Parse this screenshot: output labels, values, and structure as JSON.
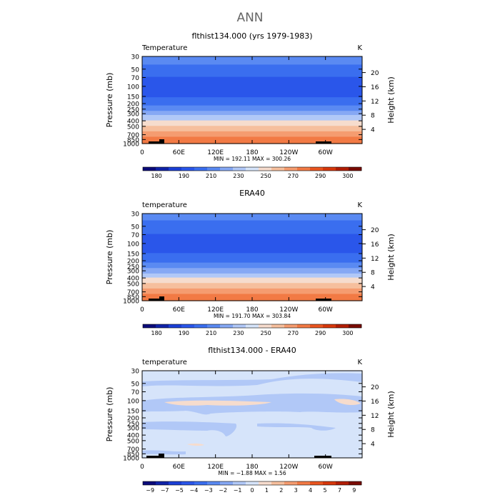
{
  "figure": {
    "title": "ANN"
  },
  "chart_data": [
    {
      "type": "heatmap",
      "title": "flthist134.000 (yrs 1979-1983)",
      "variable_label": "Temperature",
      "units": "K",
      "ylabel": "Pressure (mb)",
      "ylabel_right": "Height (km)",
      "x_ticks": [
        "0",
        "60E",
        "120E",
        "180",
        "120W",
        "60W"
      ],
      "y_ticks": [
        "30",
        "50",
        "70",
        "100",
        "150",
        "200",
        "250",
        "300",
        "400",
        "500",
        "700",
        "850",
        "1000"
      ],
      "y_right_ticks": [
        "20",
        "16",
        "12",
        "8",
        "4"
      ],
      "min_max": "MIN = 192.11   MAX = 300.26",
      "levels": [
        "180",
        "190",
        "210",
        "230",
        "250",
        "270",
        "290",
        "300"
      ],
      "colors": [
        "#0b0b7a",
        "#1023a8",
        "#1b3fd6",
        "#2a56ea",
        "#3a6eef",
        "#5a8af2",
        "#86a8f4",
        "#b1c8f7",
        "#d6e4fa",
        "#f6dccd",
        "#f6bf9d",
        "#f59c70",
        "#f27a45",
        "#ea5520",
        "#d7380c",
        "#b21e06",
        "#7a0c04"
      ],
      "profile": [
        {
          "p": 30,
          "t": 225
        },
        {
          "p": 50,
          "t": 217
        },
        {
          "p": 70,
          "t": 210
        },
        {
          "p": 100,
          "t": 205
        },
        {
          "p": 150,
          "t": 209
        },
        {
          "p": 200,
          "t": 218
        },
        {
          "p": 250,
          "t": 227
        },
        {
          "p": 300,
          "t": 236
        },
        {
          "p": 400,
          "t": 251
        },
        {
          "p": 500,
          "t": 262
        },
        {
          "p": 700,
          "t": 277
        },
        {
          "p": 850,
          "t": 285
        },
        {
          "p": 1000,
          "t": 290
        }
      ]
    },
    {
      "type": "heatmap",
      "title": "ERA40",
      "variable_label": "temperature",
      "units": "K",
      "ylabel": "Pressure (mb)",
      "ylabel_right": "Height (km)",
      "x_ticks": [
        "0",
        "60E",
        "120E",
        "180",
        "120W",
        "60W"
      ],
      "y_ticks": [
        "30",
        "50",
        "70",
        "100",
        "150",
        "200",
        "250",
        "300",
        "400",
        "500",
        "700",
        "850",
        "1000"
      ],
      "y_right_ticks": [
        "20",
        "16",
        "12",
        "8",
        "4"
      ],
      "min_max": "MIN = 191.70   MAX = 303.84",
      "levels": [
        "180",
        "190",
        "210",
        "230",
        "250",
        "270",
        "290",
        "300"
      ],
      "colors": [
        "#0b0b7a",
        "#1023a8",
        "#1b3fd6",
        "#2a56ea",
        "#3a6eef",
        "#5a8af2",
        "#86a8f4",
        "#b1c8f7",
        "#d6e4fa",
        "#f6dccd",
        "#f6bf9d",
        "#f59c70",
        "#f27a45",
        "#ea5520",
        "#d7380c",
        "#b21e06",
        "#7a0c04"
      ],
      "profile": [
        {
          "p": 30,
          "t": 224
        },
        {
          "p": 50,
          "t": 217
        },
        {
          "p": 70,
          "t": 210
        },
        {
          "p": 100,
          "t": 206
        },
        {
          "p": 150,
          "t": 210
        },
        {
          "p": 200,
          "t": 218
        },
        {
          "p": 250,
          "t": 227
        },
        {
          "p": 300,
          "t": 236
        },
        {
          "p": 400,
          "t": 250
        },
        {
          "p": 500,
          "t": 261
        },
        {
          "p": 700,
          "t": 276
        },
        {
          "p": 850,
          "t": 284
        },
        {
          "p": 1000,
          "t": 289
        }
      ]
    },
    {
      "type": "heatmap",
      "title": "flthist134.000 - ERA40",
      "variable_label": "temperature",
      "units": "K",
      "ylabel": "Pressure (mb)",
      "ylabel_right": "Height (km)",
      "x_ticks": [
        "0",
        "60E",
        "120E",
        "180",
        "120W",
        "60W"
      ],
      "y_ticks": [
        "30",
        "50",
        "70",
        "100",
        "150",
        "200",
        "250",
        "300",
        "400",
        "500",
        "700",
        "850",
        "1000"
      ],
      "y_right_ticks": [
        "20",
        "16",
        "12",
        "8",
        "4"
      ],
      "min_max": "MIN = −1.88   MAX =   1.56",
      "levels": [
        "−9",
        "−7",
        "−5",
        "−4",
        "−3",
        "−2",
        "−1",
        "0",
        "1",
        "2",
        "3",
        "4",
        "5",
        "7",
        "9"
      ],
      "colors": [
        "#0b0b7a",
        "#1023a8",
        "#1b3fd6",
        "#2a56ea",
        "#3a6eef",
        "#5a8af2",
        "#86a8f4",
        "#b1c8f7",
        "#d6e4fa",
        "#f6dccd",
        "#f6bf9d",
        "#f59c70",
        "#f27a45",
        "#ea5520",
        "#d7380c",
        "#b21e06",
        "#7a0c04"
      ],
      "base_color": "#d6e4fa",
      "patch_colors": {
        "cool": "#b1c8f7",
        "warm": "#f6dccd"
      }
    }
  ]
}
